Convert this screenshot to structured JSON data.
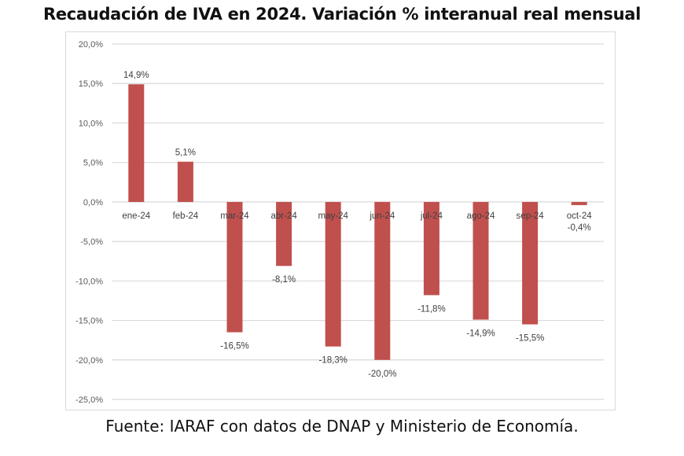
{
  "chart_data": {
    "type": "bar",
    "title": "Recaudación de IVA en 2024. Variación % interanual real mensual",
    "xlabel": "",
    "ylabel": "",
    "categories": [
      "ene-24",
      "feb-24",
      "mar-24",
      "abr-24",
      "may-24",
      "jun-24",
      "jul-24",
      "ago-24",
      "sep-24",
      "oct-24"
    ],
    "values": [
      14.9,
      5.1,
      -16.5,
      -8.1,
      -18.3,
      -20.0,
      -11.8,
      -14.9,
      -15.5,
      -0.4
    ],
    "data_labels": [
      "14,9%",
      "5,1%",
      "-16,5%",
      "-8,1%",
      "-18,3%",
      "-20,0%",
      "-11,8%",
      "-14,9%",
      "-15,5%",
      "-0,4%"
    ],
    "ylim": [
      -25,
      20
    ],
    "yticks": [
      20,
      15,
      10,
      5,
      0,
      -5,
      -10,
      -15,
      -20,
      -25
    ],
    "ytick_labels": [
      "20,0%",
      "15,0%",
      "10,0%",
      "5,0%",
      "0,0%",
      "-5,0%",
      "-10,0%",
      "-15,0%",
      "-20,0%",
      "-25,0%"
    ],
    "grid": true,
    "legend": "none",
    "bar_color": "#c0504d",
    "source": "Fuente: IARAF con datos de DNAP y Ministerio de Economía."
  }
}
